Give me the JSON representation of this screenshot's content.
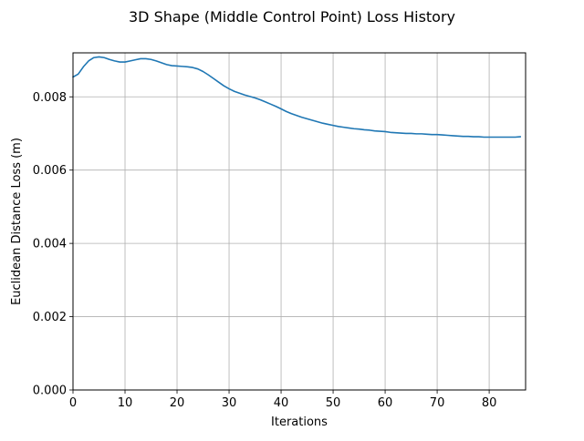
{
  "chart_data": {
    "type": "line",
    "title": "3D Shape (Middle Control Point) Loss History",
    "xlabel": "Iterations",
    "ylabel": "Euclidean Distance Loss (m)",
    "xlim": [
      0,
      87
    ],
    "ylim": [
      0,
      0.0092
    ],
    "xticks": [
      0,
      10,
      20,
      30,
      40,
      50,
      60,
      70,
      80
    ],
    "xtick_labels": [
      "0",
      "10",
      "20",
      "30",
      "40",
      "50",
      "60",
      "70",
      "80"
    ],
    "yticks": [
      0,
      0.002,
      0.004,
      0.006,
      0.008
    ],
    "ytick_labels": [
      "0.000",
      "0.002",
      "0.004",
      "0.006",
      "0.008"
    ],
    "grid": true,
    "legend": "none",
    "series": [
      {
        "color": "#1f77b4",
        "x": [
          0,
          1,
          2,
          3,
          4,
          5,
          6,
          7,
          8,
          9,
          10,
          11,
          12,
          13,
          14,
          15,
          16,
          17,
          18,
          19,
          20,
          21,
          22,
          23,
          24,
          25,
          26,
          27,
          28,
          29,
          30,
          31,
          32,
          33,
          34,
          35,
          36,
          37,
          38,
          39,
          40,
          41,
          42,
          43,
          44,
          45,
          46,
          47,
          48,
          49,
          50,
          51,
          52,
          53,
          54,
          55,
          56,
          57,
          58,
          59,
          60,
          61,
          62,
          63,
          64,
          65,
          66,
          67,
          68,
          69,
          70,
          71,
          72,
          73,
          74,
          75,
          76,
          77,
          78,
          79,
          80,
          81,
          82,
          83,
          84,
          85,
          86
        ],
        "y": [
          0.00854,
          0.00862,
          0.00882,
          0.00898,
          0.00907,
          0.00909,
          0.00907,
          0.00902,
          0.00898,
          0.00895,
          0.00895,
          0.00898,
          0.00901,
          0.00904,
          0.00904,
          0.00902,
          0.00898,
          0.00893,
          0.00888,
          0.00885,
          0.00884,
          0.00883,
          0.00882,
          0.0088,
          0.00876,
          0.00869,
          0.0086,
          0.0085,
          0.0084,
          0.0083,
          0.00822,
          0.00815,
          0.0081,
          0.00805,
          0.00801,
          0.00797,
          0.00792,
          0.00786,
          0.0078,
          0.00774,
          0.00767,
          0.0076,
          0.00754,
          0.00749,
          0.00744,
          0.0074,
          0.00736,
          0.00732,
          0.00728,
          0.00725,
          0.00722,
          0.00719,
          0.00717,
          0.00715,
          0.00713,
          0.00712,
          0.0071,
          0.00709,
          0.00707,
          0.00706,
          0.00705,
          0.00703,
          0.00702,
          0.00701,
          0.007,
          0.007,
          0.00699,
          0.00699,
          0.00698,
          0.00697,
          0.00697,
          0.00696,
          0.00695,
          0.00694,
          0.00693,
          0.00692,
          0.00692,
          0.00691,
          0.00691,
          0.0069,
          0.0069,
          0.0069,
          0.0069,
          0.0069,
          0.0069,
          0.0069,
          0.00691
        ]
      }
    ]
  }
}
